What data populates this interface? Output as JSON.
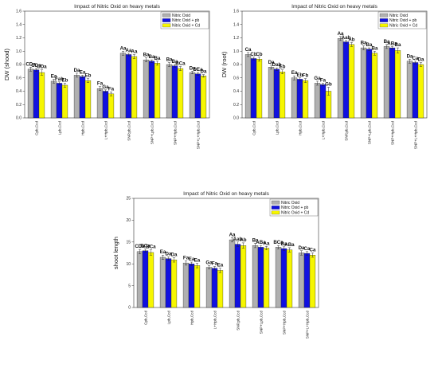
{
  "colors": {
    "nitric_oxid": "#b0b0b0",
    "pb": "#1010e0",
    "cd": "#f6f600"
  },
  "chart_data": [
    {
      "type": "bar",
      "title": "Impact of Nitric Oxid on heavy metals",
      "ylabel": "DW (shood)",
      "ylim": [
        0,
        1.6
      ],
      "yticks": [
        0.0,
        0.2,
        0.4,
        0.6,
        0.8,
        1.0,
        1.2,
        1.4,
        1.6
      ],
      "categories": [
        "Cpb,Ccd",
        "Lpb,Ccd",
        "Hpb,Ccd",
        "L+Hpb,Ccd",
        "SNP,pb,Ccd",
        "SNP+Lpb,Ccd",
        "SNP+Hpb,Ccd",
        "SNP+L+Hpb,Ccd"
      ],
      "legend": [
        "Nitric Oxid",
        "Nitric Oxid  + pb",
        "Nitric Oxid  + Cd"
      ],
      "legend_position": "top-right",
      "series": [
        {
          "name": "Nitric Oxid",
          "values": [
            0.73,
            0.55,
            0.64,
            0.44,
            0.97,
            0.87,
            0.8,
            0.68
          ],
          "errors": [
            0.03,
            0.03,
            0.03,
            0.03,
            0.03,
            0.03,
            0.03,
            0.02
          ]
        },
        {
          "name": "Nitric Oxid  + pb",
          "values": [
            0.72,
            0.52,
            0.62,
            0.4,
            0.95,
            0.85,
            0.78,
            0.66
          ],
          "errors": [
            0.02,
            0.02,
            0.02,
            0.02,
            0.02,
            0.02,
            0.02,
            0.02
          ]
        },
        {
          "name": "Nitric Oxid  + Cd",
          "values": [
            0.68,
            0.49,
            0.56,
            0.36,
            0.92,
            0.82,
            0.74,
            0.63
          ],
          "errors": [
            0.04,
            0.03,
            0.03,
            0.03,
            0.03,
            0.03,
            0.03,
            0.02
          ]
        }
      ],
      "annotations": [
        [
          "CDa",
          "CDa",
          "CDa"
        ],
        [
          "Ea",
          "Fab",
          "Eb"
        ],
        [
          "Da",
          "Ea",
          "Eb"
        ],
        [
          "Fa",
          "Ga",
          "Fa"
        ],
        [
          "Aa",
          "Aa",
          "Aa"
        ],
        [
          "Ba",
          "Ba",
          "Ba"
        ],
        [
          "Ba",
          "Ba",
          "BCa"
        ],
        [
          "Da",
          "DEa",
          "Da"
        ]
      ]
    },
    {
      "type": "bar",
      "title": "Impact of Nitric Oxid on heavy metals",
      "ylabel": "DW (root)",
      "ylim": [
        0,
        1.6
      ],
      "yticks": [
        0.0,
        0.2,
        0.4,
        0.6,
        0.8,
        1.0,
        1.2,
        1.4,
        1.6
      ],
      "categories": [
        "Cpb,Ccd",
        "Lpb,Ccd",
        "Hpb,Ccd",
        "L+Hpb,Ccd",
        "SNP,pb,Ccd",
        "SNP+Lpb,Ccd",
        "SNP+Hpb,Ccd",
        "SNP+L+Hpb,Ccd"
      ],
      "legend": [
        "Nitric Oxid",
        "Nitric Oxid  + pb",
        "Nitric Oxid  + Cd"
      ],
      "legend_position": "top-right",
      "series": [
        {
          "name": "Nitric Oxid",
          "values": [
            0.95,
            0.76,
            0.6,
            0.52,
            1.19,
            1.05,
            1.07,
            0.85
          ],
          "errors": [
            0.03,
            0.03,
            0.03,
            0.03,
            0.03,
            0.03,
            0.03,
            0.03
          ]
        },
        {
          "name": "Nitric Oxid  + pb",
          "values": [
            0.89,
            0.73,
            0.58,
            0.5,
            1.14,
            1.03,
            1.05,
            0.83
          ],
          "errors": [
            0.02,
            0.02,
            0.02,
            0.02,
            0.02,
            0.02,
            0.02,
            0.02
          ]
        },
        {
          "name": "Nitric Oxid  + Cd",
          "values": [
            0.88,
            0.69,
            0.56,
            0.4,
            1.1,
            0.97,
            1.01,
            0.8
          ],
          "errors": [
            0.03,
            0.03,
            0.03,
            0.06,
            0.03,
            0.03,
            0.04,
            0.03
          ]
        }
      ],
      "annotations": [
        [
          "Ca",
          "Cb",
          "Cb"
        ],
        [
          "Da",
          "Dab",
          "Eb"
        ],
        [
          "Ea",
          "Eb",
          "Fb"
        ],
        [
          "Ga",
          "Fa",
          "Gb"
        ],
        [
          "Aa",
          "Aab",
          "Ab"
        ],
        [
          "Ba",
          "Ba",
          "Ba"
        ],
        [
          "Ba",
          "ABa",
          "Ba"
        ],
        [
          "Da",
          "Ca",
          "Da"
        ]
      ]
    },
    {
      "type": "bar",
      "title": "Impact of Nitric Oxid on heavy metals",
      "ylabel": "shoot length",
      "ylim": [
        0,
        25
      ],
      "yticks": [
        0,
        5,
        10,
        15,
        20,
        25
      ],
      "categories": [
        "Cpb,Ccd",
        "Lpb,Ccd",
        "Hpb,Ccd",
        "L+Hpb,Ccd",
        "SNP,pb,Ccd",
        "SNP+Lpb,Ccd",
        "SNP+Hpb,Ccd",
        "SNP+L+Hpb,Ccd"
      ],
      "legend": [
        "Nitric Oxid",
        "Nitric Oxid  + pb",
        "Nitric Oxid  + Cd"
      ],
      "legend_position": "top-right",
      "series": [
        {
          "name": "Nitric Oxid",
          "values": [
            12.8,
            11.5,
            10.2,
            9.2,
            15.5,
            14.2,
            13.8,
            12.5
          ],
          "errors": [
            0.5,
            0.5,
            0.5,
            0.4,
            0.5,
            0.5,
            0.4,
            0.5
          ]
        },
        {
          "name": "Nitric Oxid  + pb",
          "values": [
            13.0,
            11.2,
            10.0,
            9.0,
            14.5,
            13.8,
            13.5,
            12.4
          ],
          "errors": [
            0.4,
            0.4,
            0.4,
            0.4,
            0.5,
            0.4,
            0.4,
            0.4
          ]
        },
        {
          "name": "Nitric Oxid  + Cd",
          "values": [
            12.6,
            10.9,
            9.6,
            8.5,
            14.2,
            13.6,
            13.2,
            12.0
          ],
          "errors": [
            0.6,
            0.5,
            0.5,
            0.5,
            0.6,
            0.4,
            0.5,
            0.5
          ]
        }
      ],
      "annotations": [
        [
          "CDa",
          "BCa",
          "BCa"
        ],
        [
          "Ea",
          "Da",
          "Da"
        ],
        [
          "Fa",
          "Ea",
          "Ea"
        ],
        [
          "Ga",
          "Fa",
          "Ea"
        ],
        [
          "Aa",
          "Aab",
          "Ab"
        ],
        [
          "Ba",
          "ABa",
          "Aa"
        ],
        [
          "BCa",
          "Ba",
          "ABa"
        ],
        [
          "Da",
          "Ca",
          "Ca"
        ]
      ]
    }
  ]
}
